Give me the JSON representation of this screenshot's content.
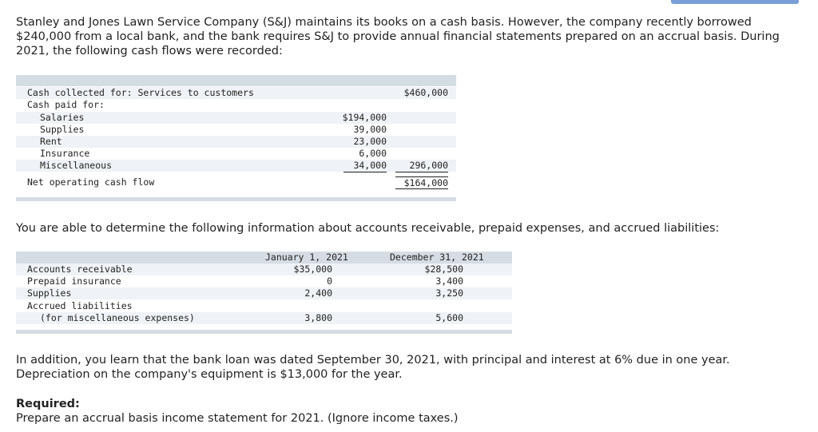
{
  "intro": "Stanley and Jones Lawn Service Company (S&J) maintains its books on a cash basis. However, the company recently borrowed $240,000 from a local bank, and the bank requires S&J to provide annual financial statements prepared on an accrual basis. During 2021, the following cash flows were recorded:",
  "cash_table": {
    "rows": [
      {
        "label": "Cash collected for: Services to customers",
        "c1": "",
        "c2": "$460,000"
      },
      {
        "label": "Cash paid for:",
        "c1": "",
        "c2": ""
      },
      {
        "label": "Salaries",
        "c1": "$194,000",
        "c2": ""
      },
      {
        "label": "Supplies",
        "c1": "39,000",
        "c2": ""
      },
      {
        "label": "Rent",
        "c1": "23,000",
        "c2": ""
      },
      {
        "label": "Insurance",
        "c1": "6,000",
        "c2": ""
      },
      {
        "label": "Miscellaneous",
        "c1": "34,000",
        "c2": "296,000"
      }
    ],
    "net_label": "Net operating cash flow",
    "net_value": "$164,000"
  },
  "para2": "You are able to determine the following information about accounts receivable, prepaid expenses, and accrued liabilities:",
  "balance_table": {
    "headers": [
      "January 1, 2021",
      "December 31, 2021"
    ],
    "rows": [
      {
        "label": "Accounts receivable",
        "jan": "$35,000",
        "dec": "$28,500"
      },
      {
        "label": "Prepaid insurance",
        "jan": "0",
        "dec": "3,400"
      },
      {
        "label": "Supplies",
        "jan": "2,400",
        "dec": "3,250"
      },
      {
        "label": "Accrued liabilities",
        "jan": "",
        "dec": ""
      },
      {
        "label": "(for miscellaneous expenses)",
        "jan": "3,800",
        "dec": "5,600"
      }
    ]
  },
  "para3": "In addition, you learn that the bank loan was dated September 30, 2021, with principal and interest at 6% due in one year. Depreciation on the company's equipment is $13,000 for the year.",
  "required_label": "Required:",
  "required_text": "Prepare an accrual basis income statement for 2021. (Ignore income taxes.)"
}
